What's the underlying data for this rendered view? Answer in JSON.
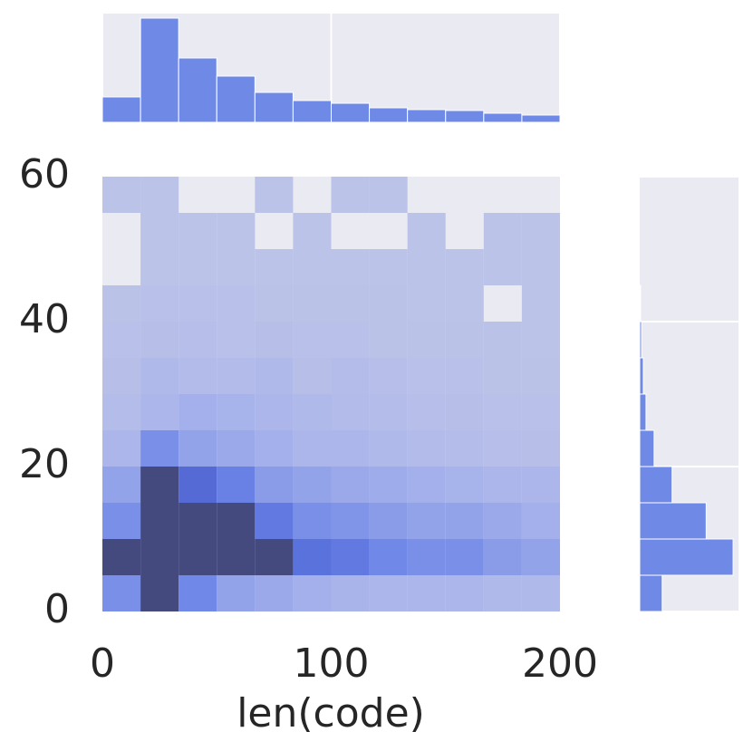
{
  "chart_data": [
    {
      "type": "heatmap",
      "xlabel": "len(code)",
      "xbins": [
        0,
        16.67,
        33.33,
        50,
        66.67,
        83.33,
        100,
        116.67,
        133.33,
        150,
        166.67,
        183.33,
        200
      ],
      "ybins": [
        0,
        5,
        10,
        15,
        20,
        25,
        30,
        35,
        40,
        45,
        50,
        55,
        60
      ],
      "values": [
        [
          5,
          10,
          5.5,
          3.5,
          3,
          2.5,
          2.2,
          2,
          2,
          2,
          1.8,
          1.8
        ],
        [
          10,
          10,
          10,
          10,
          10,
          7,
          6.5,
          5.5,
          5,
          5,
          4,
          3.5
        ],
        [
          5,
          10,
          10,
          10,
          6.5,
          5,
          4.5,
          4,
          3.5,
          3.5,
          3,
          2.5
        ],
        [
          3.5,
          10,
          7.5,
          6,
          4,
          3.5,
          3,
          2.8,
          2.5,
          2.3,
          2,
          2
        ],
        [
          2,
          5,
          3.5,
          3,
          2.5,
          2,
          2,
          1.8,
          1.6,
          1.5,
          1.4,
          1.3
        ],
        [
          1.5,
          2,
          2.5,
          2.3,
          2,
          1.8,
          1.6,
          1.5,
          1.4,
          1.3,
          1.2,
          1.2
        ],
        [
          1.3,
          1.8,
          1.6,
          1.6,
          1.8,
          1.3,
          1.5,
          1.4,
          1.2,
          1.2,
          1.1,
          1.1
        ],
        [
          1.2,
          1.3,
          1.4,
          1.2,
          1.3,
          1.2,
          1.2,
          1.1,
          1.1,
          1.1,
          1.1,
          1
        ],
        [
          1.1,
          1.2,
          1.2,
          1.2,
          1.1,
          1.1,
          1.1,
          1.1,
          1,
          1,
          0,
          1
        ],
        [
          0,
          1,
          1,
          1,
          1,
          1,
          1,
          1,
          1,
          1,
          1,
          1
        ],
        [
          0,
          1,
          1,
          1,
          0,
          1,
          0,
          0,
          1,
          0,
          1,
          1
        ],
        [
          1,
          1,
          0,
          0,
          1,
          0,
          1,
          1,
          0,
          0,
          0,
          0
        ]
      ],
      "color_stops": [
        [
          1,
          "#bcc3e8"
        ],
        [
          2.5,
          "#a4b0ec"
        ],
        [
          4,
          "#8a9ce8"
        ],
        [
          5.5,
          "#7088e8"
        ],
        [
          7,
          "#5a72dc"
        ],
        [
          8.5,
          "#4a5bc8"
        ],
        [
          10,
          "#444a7e"
        ]
      ],
      "xlim": [
        0,
        200
      ],
      "ylim": [
        0,
        60
      ],
      "xticks": [
        0,
        100,
        200
      ],
      "yticks": [
        0,
        20,
        40,
        60
      ]
    },
    {
      "type": "histogram",
      "orientation": "vertical",
      "color": "#6f8ae6",
      "bins": [
        0,
        16.67,
        33.33,
        50,
        66.67,
        83.33,
        100,
        116.67,
        133.33,
        150,
        166.67,
        183.33,
        200
      ],
      "values": [
        28,
        115,
        71,
        51,
        33,
        24,
        21,
        16,
        14,
        13,
        10,
        8
      ],
      "xlim": [
        0,
        200
      ],
      "ylim": [
        0,
        120
      ],
      "grid_x": [
        0,
        100,
        200
      ]
    },
    {
      "type": "histogram",
      "orientation": "horizontal",
      "color": "#6f8ae6",
      "bins": [
        0,
        5,
        10,
        15,
        20,
        25,
        30,
        35,
        40,
        45,
        50,
        55,
        60
      ],
      "values": [
        25,
        104,
        74,
        36,
        16,
        7,
        4,
        2,
        1,
        0,
        0,
        0
      ],
      "xlim": [
        0,
        110
      ],
      "ylim": [
        0,
        60
      ],
      "grid_y": [
        0,
        20,
        40,
        60
      ]
    }
  ]
}
